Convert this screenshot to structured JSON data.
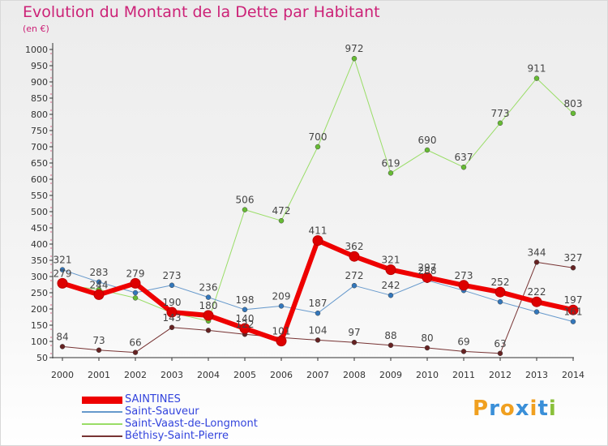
{
  "header": {
    "title": "Evolution du Montant de la Dette par Habitant",
    "subtitle": "(en €)"
  },
  "logo": {
    "text": "Proxiti",
    "letters": [
      "P",
      "r",
      "o",
      "x",
      "i",
      "t",
      "i"
    ],
    "colors": [
      "#f0a020",
      "#3a8fd8",
      "#f0a020",
      "#3a8fd8",
      "#f0a020",
      "#3a8fd8",
      "#8ac03a"
    ]
  },
  "chart_data": {
    "type": "line",
    "title": "Evolution du Montant de la Dette par Habitant",
    "ylabel": "(en €)",
    "xlabel": "",
    "x": [
      "2000",
      "2001",
      "2002",
      "2003",
      "2004",
      "2005",
      "2006",
      "2007",
      "2008",
      "2009",
      "2010",
      "2011",
      "2012",
      "2013",
      "2014"
    ],
    "ylim": [
      50,
      1000
    ],
    "yticks": [
      50,
      100,
      150,
      200,
      250,
      300,
      350,
      400,
      450,
      500,
      550,
      600,
      650,
      700,
      750,
      800,
      850,
      900,
      950,
      1000
    ],
    "grid": false,
    "legend_position": "bottom-left",
    "series": [
      {
        "name": "Saint-Vaast-de-Longmont",
        "color": "#99dd66",
        "marker": "#66bb33",
        "width": 1,
        "values": [
          274,
          260,
          234,
          188,
          163,
          506,
          472,
          700,
          972,
          619,
          690,
          637,
          773,
          911,
          803
        ],
        "labels": [
          "",
          "",
          "",
          "",
          "",
          "506",
          "472",
          "700",
          "972",
          "619",
          "690",
          "637",
          "773",
          "911",
          "803"
        ]
      },
      {
        "name": "Saint-Sauveur",
        "color": "#6699cc",
        "marker": "#3377bb",
        "width": 1,
        "values": [
          321,
          283,
          250,
          273,
          236,
          198,
          209,
          187,
          272,
          242,
          288,
          257,
          222,
          191,
          161
        ],
        "labels": [
          "321",
          "283",
          "",
          "273",
          "236",
          "198",
          "209",
          "187",
          "272",
          "242",
          "288",
          "",
          "",
          "",
          "161"
        ]
      },
      {
        "name": "Béthisy-Saint-Pierre",
        "color": "#773333",
        "marker": "#662222",
        "width": 1,
        "values": [
          84,
          73,
          66,
          143,
          134,
          122,
          112,
          104,
          97,
          88,
          80,
          69,
          63,
          344,
          327
        ],
        "labels": [
          "84",
          "73",
          "66",
          "143",
          "",
          "122",
          "",
          "104",
          "97",
          "88",
          "80",
          "69",
          "63",
          "344",
          "327"
        ]
      },
      {
        "name": "SAINTINES",
        "color": "#ee0000",
        "marker": "#dd0000",
        "width": 6,
        "values": [
          279,
          244,
          279,
          190,
          180,
          140,
          101,
          411,
          362,
          321,
          297,
          273,
          252,
          222,
          197
        ],
        "labels": [
          "279",
          "244",
          "279",
          "190",
          "180",
          "140",
          "101",
          "411",
          "362",
          "321",
          "297",
          "273",
          "252",
          "222",
          "197"
        ]
      }
    ]
  },
  "legend": {
    "items": [
      {
        "label": "SAINTINES",
        "color": "#ee0000",
        "thickness": 9
      },
      {
        "label": "Saint-Sauveur",
        "color": "#6699cc",
        "thickness": 2
      },
      {
        "label": "Saint-Vaast-de-Longmont",
        "color": "#99dd66",
        "thickness": 2
      },
      {
        "label": "Béthisy-Saint-Pierre",
        "color": "#773333",
        "thickness": 2
      }
    ]
  }
}
